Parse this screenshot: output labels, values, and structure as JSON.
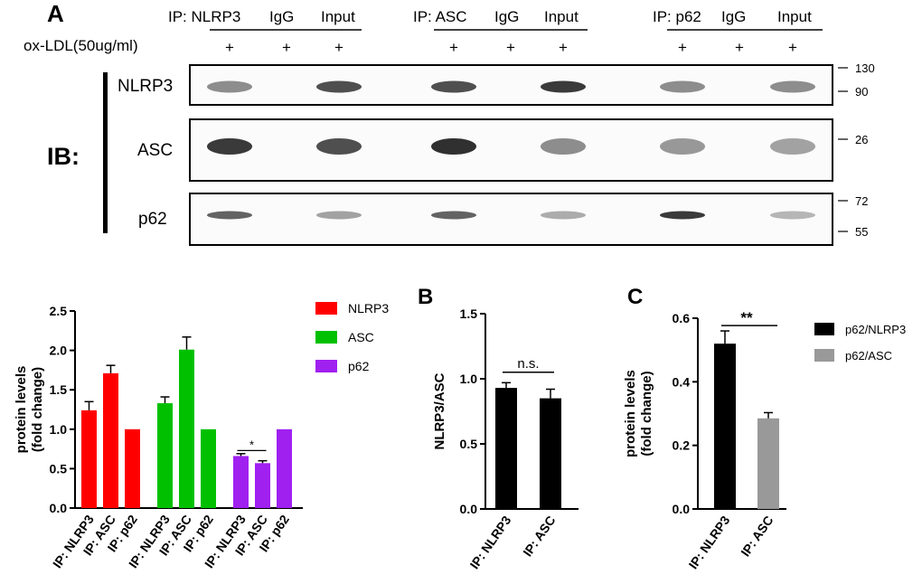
{
  "panel_a": {
    "letter": "A",
    "treatment_label": "ox-LDL(50ug/ml)",
    "groups": [
      {
        "ip_label": "IP: NLRP3",
        "igg_label": "IgG",
        "input_label": "Input"
      },
      {
        "ip_label": "IP: ASC",
        "igg_label": "IgG",
        "input_label": "Input"
      },
      {
        "ip_label": "IP: p62",
        "igg_label": "IgG",
        "input_label": "Input"
      }
    ],
    "treatment_marks": [
      "+",
      "+",
      "+",
      "+",
      "+",
      "+",
      "+",
      "+",
      "+"
    ],
    "ib_label": "IB:",
    "blots": [
      {
        "name": "NLRP3",
        "mw": [
          "130",
          "90"
        ]
      },
      {
        "name": "ASC",
        "mw": [
          "26"
        ]
      },
      {
        "name": "p62",
        "mw": [
          "72",
          "55"
        ]
      }
    ],
    "band_intensity": [
      [
        0.55,
        0.0,
        0.85,
        0.85,
        0.0,
        0.95,
        0.55,
        0.0,
        0.55
      ],
      [
        0.95,
        0.0,
        0.85,
        1.0,
        0.0,
        0.55,
        0.5,
        0.0,
        0.45
      ],
      [
        0.75,
        0.0,
        0.45,
        0.75,
        0.0,
        0.4,
        0.95,
        0.0,
        0.35
      ]
    ]
  },
  "panel_b_letter": "B",
  "panel_c_letter": "C",
  "chart_data": [
    {
      "type": "bar",
      "title": "",
      "xlabel": "",
      "ylabel": "protein levels (fold change)",
      "ylabel_lines": [
        "protein levels",
        "(fold change)"
      ],
      "ylim": [
        0,
        2.5
      ],
      "yticks": [
        "0.0",
        "0.5",
        "1.0",
        "1.5",
        "2.0",
        "2.5"
      ],
      "groups": [
        {
          "series": "NLRP3",
          "color": "#ff0000",
          "categories": [
            "IP: NLRP3",
            "IP: ASC",
            "IP: p62"
          ],
          "values": [
            1.24,
            1.71,
            1.0
          ],
          "errors": [
            0.11,
            0.1,
            0.0
          ]
        },
        {
          "series": "ASC",
          "color": "#00c000",
          "categories": [
            "IP: NLRP3",
            "IP: ASC",
            "IP: p62"
          ],
          "values": [
            1.33,
            2.01,
            1.0
          ],
          "errors": [
            0.08,
            0.16,
            0.0
          ]
        },
        {
          "series": "p62",
          "color": "#a020f0",
          "categories": [
            "IP: NLRP3",
            "IP: ASC",
            "IP: p62"
          ],
          "values": [
            0.66,
            0.57,
            1.0
          ],
          "errors": [
            0.03,
            0.03,
            0.0
          ]
        }
      ],
      "legend": [
        {
          "label": "NLRP3",
          "color": "#ff0000"
        },
        {
          "label": "ASC",
          "color": "#00c000"
        },
        {
          "label": "p62",
          "color": "#a020f0"
        }
      ],
      "annotations": [
        {
          "text": "*",
          "between": "p62 group: IP: NLRP3 vs IP: ASC"
        }
      ]
    },
    {
      "type": "bar",
      "title": "",
      "ylabel": "NLRP3/ASC",
      "ylim": [
        0,
        1.5
      ],
      "yticks": [
        "0.0",
        "0.5",
        "1.0",
        "1.5"
      ],
      "categories": [
        "IP: NLRP3",
        "IP: ASC"
      ],
      "values": [
        0.93,
        0.85
      ],
      "errors": [
        0.04,
        0.07
      ],
      "color": "#000000",
      "annotations": [
        {
          "text": "n.s."
        }
      ]
    },
    {
      "type": "bar",
      "title": "",
      "ylabel": "protein levels (fold change)",
      "ylabel_lines": [
        "protein levels",
        "(fold change)"
      ],
      "ylim": [
        0,
        0.6
      ],
      "yticks": [
        "0.0",
        "0.2",
        "0.4",
        "0.6"
      ],
      "categories": [
        "IP: NLRP3",
        "IP: ASC"
      ],
      "values": [
        0.52,
        0.285
      ],
      "errors": [
        0.04,
        0.018
      ],
      "colors": [
        "#000000",
        "#999999"
      ],
      "legend": [
        {
          "label": "p62/NLRP3",
          "color": "#000000"
        },
        {
          "label": "p62/ASC",
          "color": "#999999"
        }
      ],
      "annotations": [
        {
          "text": "**"
        }
      ]
    }
  ]
}
